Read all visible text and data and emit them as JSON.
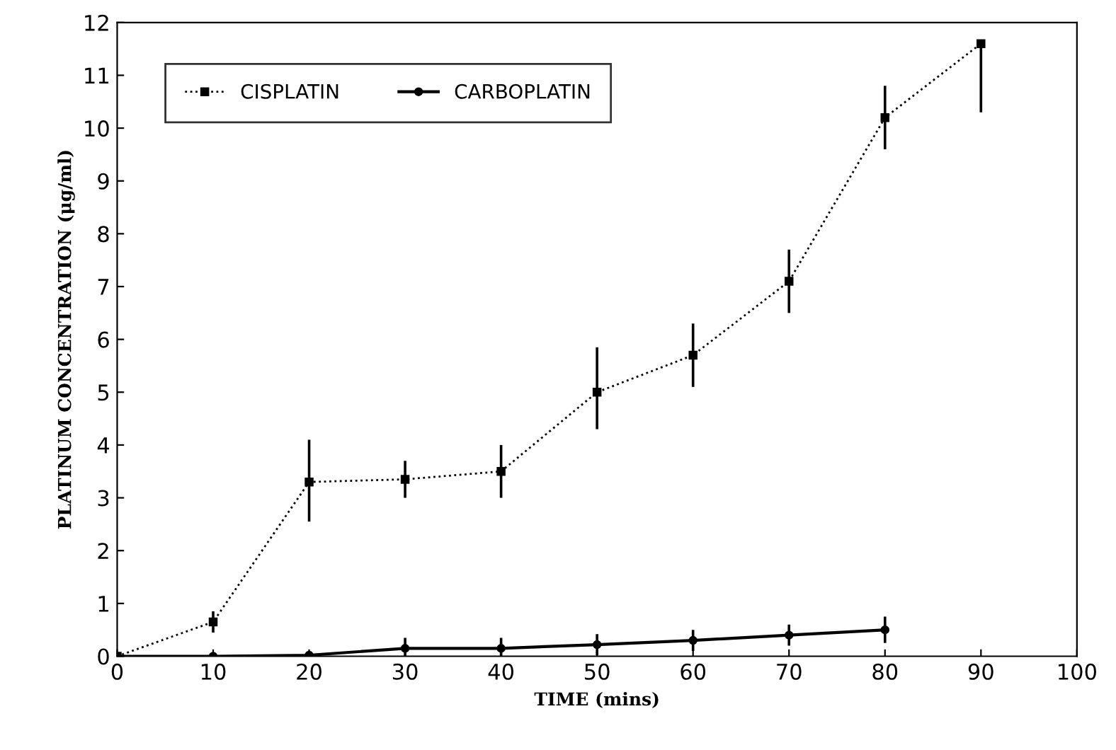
{
  "chart_data": {
    "type": "line",
    "xlabel": "TIME (mins)",
    "ylabel": "PLATINUM CONCENTRATION (μg/ml)",
    "x": [
      0,
      10,
      20,
      30,
      40,
      50,
      60,
      70,
      80,
      90
    ],
    "series": [
      {
        "name": "CISPLATIN",
        "color": "#000000",
        "marker": "square",
        "line_style": "dotted",
        "values": [
          0,
          0.65,
          3.3,
          3.35,
          3.5,
          5.0,
          5.7,
          7.1,
          10.2,
          11.6
        ],
        "errors": [
          null,
          0.2,
          [
            2.55,
            4.1
          ],
          0.35,
          0.5,
          [
            4.3,
            5.85
          ],
          0.6,
          0.6,
          0.6,
          [
            10.3,
            11.6
          ]
        ]
      },
      {
        "name": "CARBOPLATIN",
        "color": "#000000",
        "marker": "circle",
        "line_style": "solid",
        "x": [
          0,
          10,
          20,
          30,
          40,
          50,
          60,
          70,
          80
        ],
        "values": [
          0,
          0,
          0.02,
          0.15,
          0.15,
          0.22,
          0.3,
          0.4,
          0.5
        ],
        "errors": [
          null,
          null,
          null,
          0.2,
          0.2,
          0.2,
          0.2,
          0.2,
          0.25
        ]
      }
    ],
    "xlim": [
      0,
      100
    ],
    "xticks": [
      0,
      10,
      20,
      30,
      40,
      50,
      60,
      70,
      80,
      90,
      100
    ],
    "ylim": [
      0,
      12
    ],
    "yticks": [
      0,
      1,
      2,
      3,
      4,
      5,
      6,
      7,
      8,
      9,
      10,
      11,
      12
    ],
    "grid": false,
    "legend": "top left"
  }
}
